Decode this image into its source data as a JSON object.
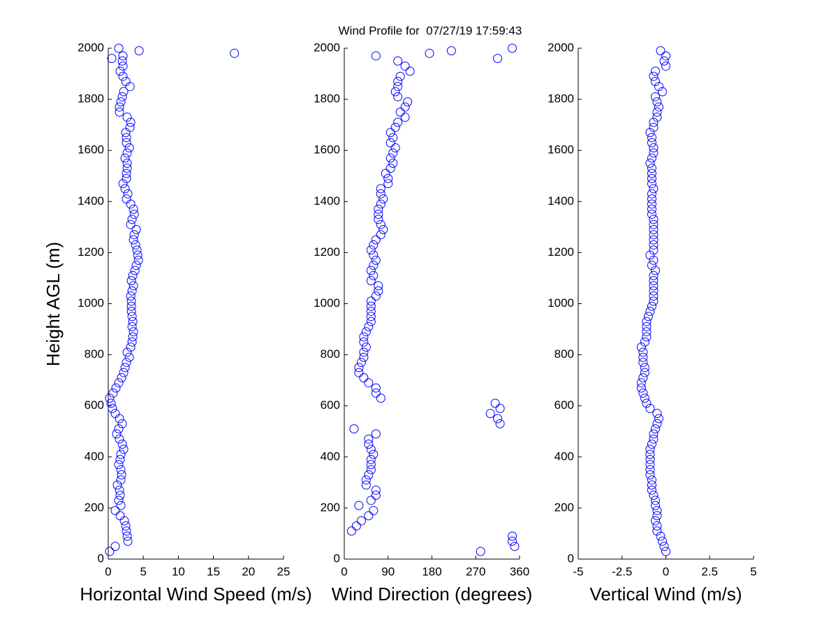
{
  "chart_data": [
    {
      "type": "scatter",
      "title": "Wind Profile for  07/27/19 17:59:43",
      "ylabel": "Height AGL (m)",
      "xlabel": "Horizontal Wind Speed (m/s)",
      "color": "#0000ff",
      "xlim": [
        0,
        25
      ],
      "xticks": [
        0,
        5,
        10,
        15,
        20,
        25
      ],
      "ylim": [
        0,
        2000
      ],
      "yticks": [
        0,
        200,
        400,
        600,
        800,
        1000,
        1200,
        1400,
        1600,
        1800,
        2000
      ],
      "x": [
        0.2,
        1,
        2.8,
        2.7,
        2.6,
        2.5,
        2.3,
        1.7,
        1,
        1.8,
        1.5,
        1.7,
        1.6,
        1.3,
        1.8,
        1.9,
        1.8,
        1.5,
        1.7,
        1.8,
        2.2,
        2,
        1.6,
        1.2,
        1.5,
        2,
        1.6,
        1,
        0.6,
        0.4,
        0.2,
        0.7,
        1.1,
        1.5,
        1.9,
        2.2,
        2.4,
        2.6,
        3,
        2.7,
        3.2,
        3.4,
        3.5,
        3.6,
        3.4,
        3.5,
        3.4,
        3.3,
        3.3,
        3.3,
        3.2,
        3.4,
        3.6,
        3.3,
        3.5,
        3.8,
        4,
        4.3,
        4.2,
        4.1,
        3.9,
        3.6,
        3.7,
        4,
        3.2,
        3.4,
        3.7,
        3.6,
        3.2,
        2.6,
        2.8,
        2.4,
        2.1,
        2.6,
        2.6,
        2.7,
        2.7,
        2.4,
        2.7,
        3,
        2.6,
        2.6,
        2.5,
        3.1,
        3.2,
        2.7,
        1.6,
        1.6,
        1.8,
        2,
        2.2,
        3.1,
        2.5,
        2.1,
        1.7,
        2.1,
        2,
        2.1,
        4.4,
        18,
        0.5,
        1.5
      ],
      "y": [
        30,
        50,
        70,
        90,
        110,
        130,
        150,
        170,
        190,
        210,
        230,
        250,
        270,
        290,
        310,
        330,
        350,
        370,
        390,
        410,
        430,
        450,
        470,
        490,
        510,
        530,
        550,
        570,
        590,
        610,
        630,
        650,
        670,
        690,
        710,
        730,
        750,
        770,
        790,
        810,
        830,
        850,
        870,
        890,
        910,
        930,
        950,
        970,
        990,
        1010,
        1030,
        1050,
        1070,
        1090,
        1110,
        1130,
        1150,
        1170,
        1190,
        1210,
        1230,
        1250,
        1270,
        1290,
        1310,
        1330,
        1350,
        1370,
        1390,
        1410,
        1430,
        1450,
        1470,
        1490,
        1510,
        1530,
        1550,
        1570,
        1590,
        1610,
        1630,
        1650,
        1670,
        1690,
        1710,
        1730,
        1750,
        1770,
        1790,
        1810,
        1830,
        1850,
        1870,
        1890,
        1910,
        1930,
        1950,
        1970,
        1990,
        1980,
        1960,
        2000
      ]
    },
    {
      "type": "scatter",
      "xlabel": "Wind Direction (degrees)",
      "color": "#0000ff",
      "xlim": [
        0,
        360
      ],
      "xticks": [
        0,
        90,
        180,
        270,
        360
      ],
      "ylim": [
        0,
        2000
      ],
      "yticks": [
        0,
        200,
        400,
        600,
        800,
        1000,
        1200,
        1400,
        1600,
        1800,
        2000
      ],
      "x": [
        280,
        350,
        345,
        345,
        15,
        25,
        35,
        50,
        60,
        30,
        55,
        65,
        65,
        45,
        45,
        50,
        55,
        55,
        55,
        60,
        55,
        50,
        50,
        65,
        20,
        320,
        315,
        300,
        320,
        310,
        75,
        65,
        65,
        50,
        40,
        30,
        30,
        35,
        40,
        40,
        45,
        40,
        40,
        45,
        50,
        55,
        55,
        55,
        55,
        55,
        65,
        70,
        70,
        55,
        60,
        55,
        60,
        65,
        60,
        55,
        60,
        65,
        75,
        80,
        75,
        70,
        70,
        70,
        75,
        80,
        75,
        75,
        90,
        90,
        85,
        95,
        100,
        95,
        100,
        105,
        95,
        100,
        95,
        105,
        110,
        125,
        115,
        125,
        130,
        110,
        105,
        110,
        110,
        115,
        135,
        125,
        110,
        65,
        220,
        175,
        315,
        345
      ],
      "y": [
        30,
        50,
        70,
        90,
        110,
        130,
        150,
        170,
        190,
        210,
        230,
        250,
        270,
        290,
        310,
        330,
        350,
        370,
        390,
        410,
        430,
        450,
        470,
        490,
        510,
        530,
        550,
        570,
        590,
        610,
        630,
        650,
        670,
        690,
        710,
        730,
        750,
        770,
        790,
        810,
        830,
        850,
        870,
        890,
        910,
        930,
        950,
        970,
        990,
        1010,
        1030,
        1050,
        1070,
        1090,
        1110,
        1130,
        1150,
        1170,
        1190,
        1210,
        1230,
        1250,
        1270,
        1290,
        1310,
        1330,
        1350,
        1370,
        1390,
        1410,
        1430,
        1450,
        1470,
        1490,
        1510,
        1530,
        1550,
        1570,
        1590,
        1610,
        1630,
        1650,
        1670,
        1690,
        1710,
        1730,
        1750,
        1770,
        1790,
        1810,
        1830,
        1850,
        1870,
        1890,
        1910,
        1930,
        1950,
        1970,
        1990,
        1980,
        1960,
        2000
      ]
    },
    {
      "type": "scatter",
      "xlabel": "Vertical Wind (m/s)",
      "color": "#0000ff",
      "xlim": [
        -5,
        5
      ],
      "xticks": [
        -5,
        -2.5,
        0,
        2.5,
        5
      ],
      "ylim": [
        0,
        2000
      ],
      "yticks": [
        0,
        200,
        400,
        600,
        800,
        1000,
        1200,
        1400,
        1600,
        1800,
        2000
      ],
      "x": [
        0,
        -0.1,
        -0.2,
        -0.3,
        -0.5,
        -0.5,
        -0.6,
        -0.5,
        -0.5,
        -0.6,
        -0.6,
        -0.7,
        -0.8,
        -0.8,
        -0.8,
        -0.9,
        -0.9,
        -0.9,
        -0.9,
        -0.9,
        -0.9,
        -0.8,
        -0.7,
        -0.7,
        -0.6,
        -0.5,
        -0.4,
        -0.5,
        -0.9,
        -1.1,
        -1.2,
        -1.3,
        -1.4,
        -1.4,
        -1.3,
        -1.2,
        -1.2,
        -1.3,
        -1.3,
        -1.3,
        -1.4,
        -1.2,
        -1.1,
        -1.1,
        -1.1,
        -1.1,
        -1,
        -0.9,
        -0.8,
        -0.7,
        -0.7,
        -0.7,
        -0.7,
        -0.7,
        -0.7,
        -0.6,
        -0.8,
        -0.7,
        -0.9,
        -0.7,
        -0.7,
        -0.7,
        -0.7,
        -0.7,
        -0.7,
        -0.7,
        -0.8,
        -0.8,
        -0.8,
        -0.8,
        -0.8,
        -0.7,
        -0.8,
        -0.8,
        -0.8,
        -0.8,
        -0.9,
        -0.8,
        -0.7,
        -0.7,
        -0.8,
        -0.8,
        -0.9,
        -0.7,
        -0.7,
        -0.5,
        -0.5,
        -0.4,
        -0.5,
        -0.6,
        -0.2,
        -0.4,
        -0.6,
        -0.7,
        -0.6,
        0,
        -0.1,
        0,
        -0.3
      ],
      "y": [
        30,
        50,
        70,
        90,
        110,
        130,
        150,
        170,
        190,
        210,
        230,
        250,
        270,
        290,
        310,
        330,
        350,
        370,
        390,
        410,
        430,
        450,
        470,
        490,
        510,
        530,
        550,
        570,
        590,
        610,
        630,
        650,
        670,
        690,
        710,
        730,
        750,
        770,
        790,
        810,
        830,
        850,
        870,
        890,
        910,
        930,
        950,
        970,
        990,
        1010,
        1030,
        1050,
        1070,
        1090,
        1110,
        1130,
        1150,
        1170,
        1190,
        1210,
        1230,
        1250,
        1270,
        1290,
        1310,
        1330,
        1350,
        1370,
        1390,
        1410,
        1430,
        1450,
        1470,
        1490,
        1510,
        1530,
        1550,
        1570,
        1590,
        1610,
        1630,
        1650,
        1670,
        1690,
        1710,
        1730,
        1750,
        1770,
        1790,
        1810,
        1830,
        1850,
        1870,
        1890,
        1910,
        1930,
        1950,
        1970,
        1990
      ]
    }
  ]
}
